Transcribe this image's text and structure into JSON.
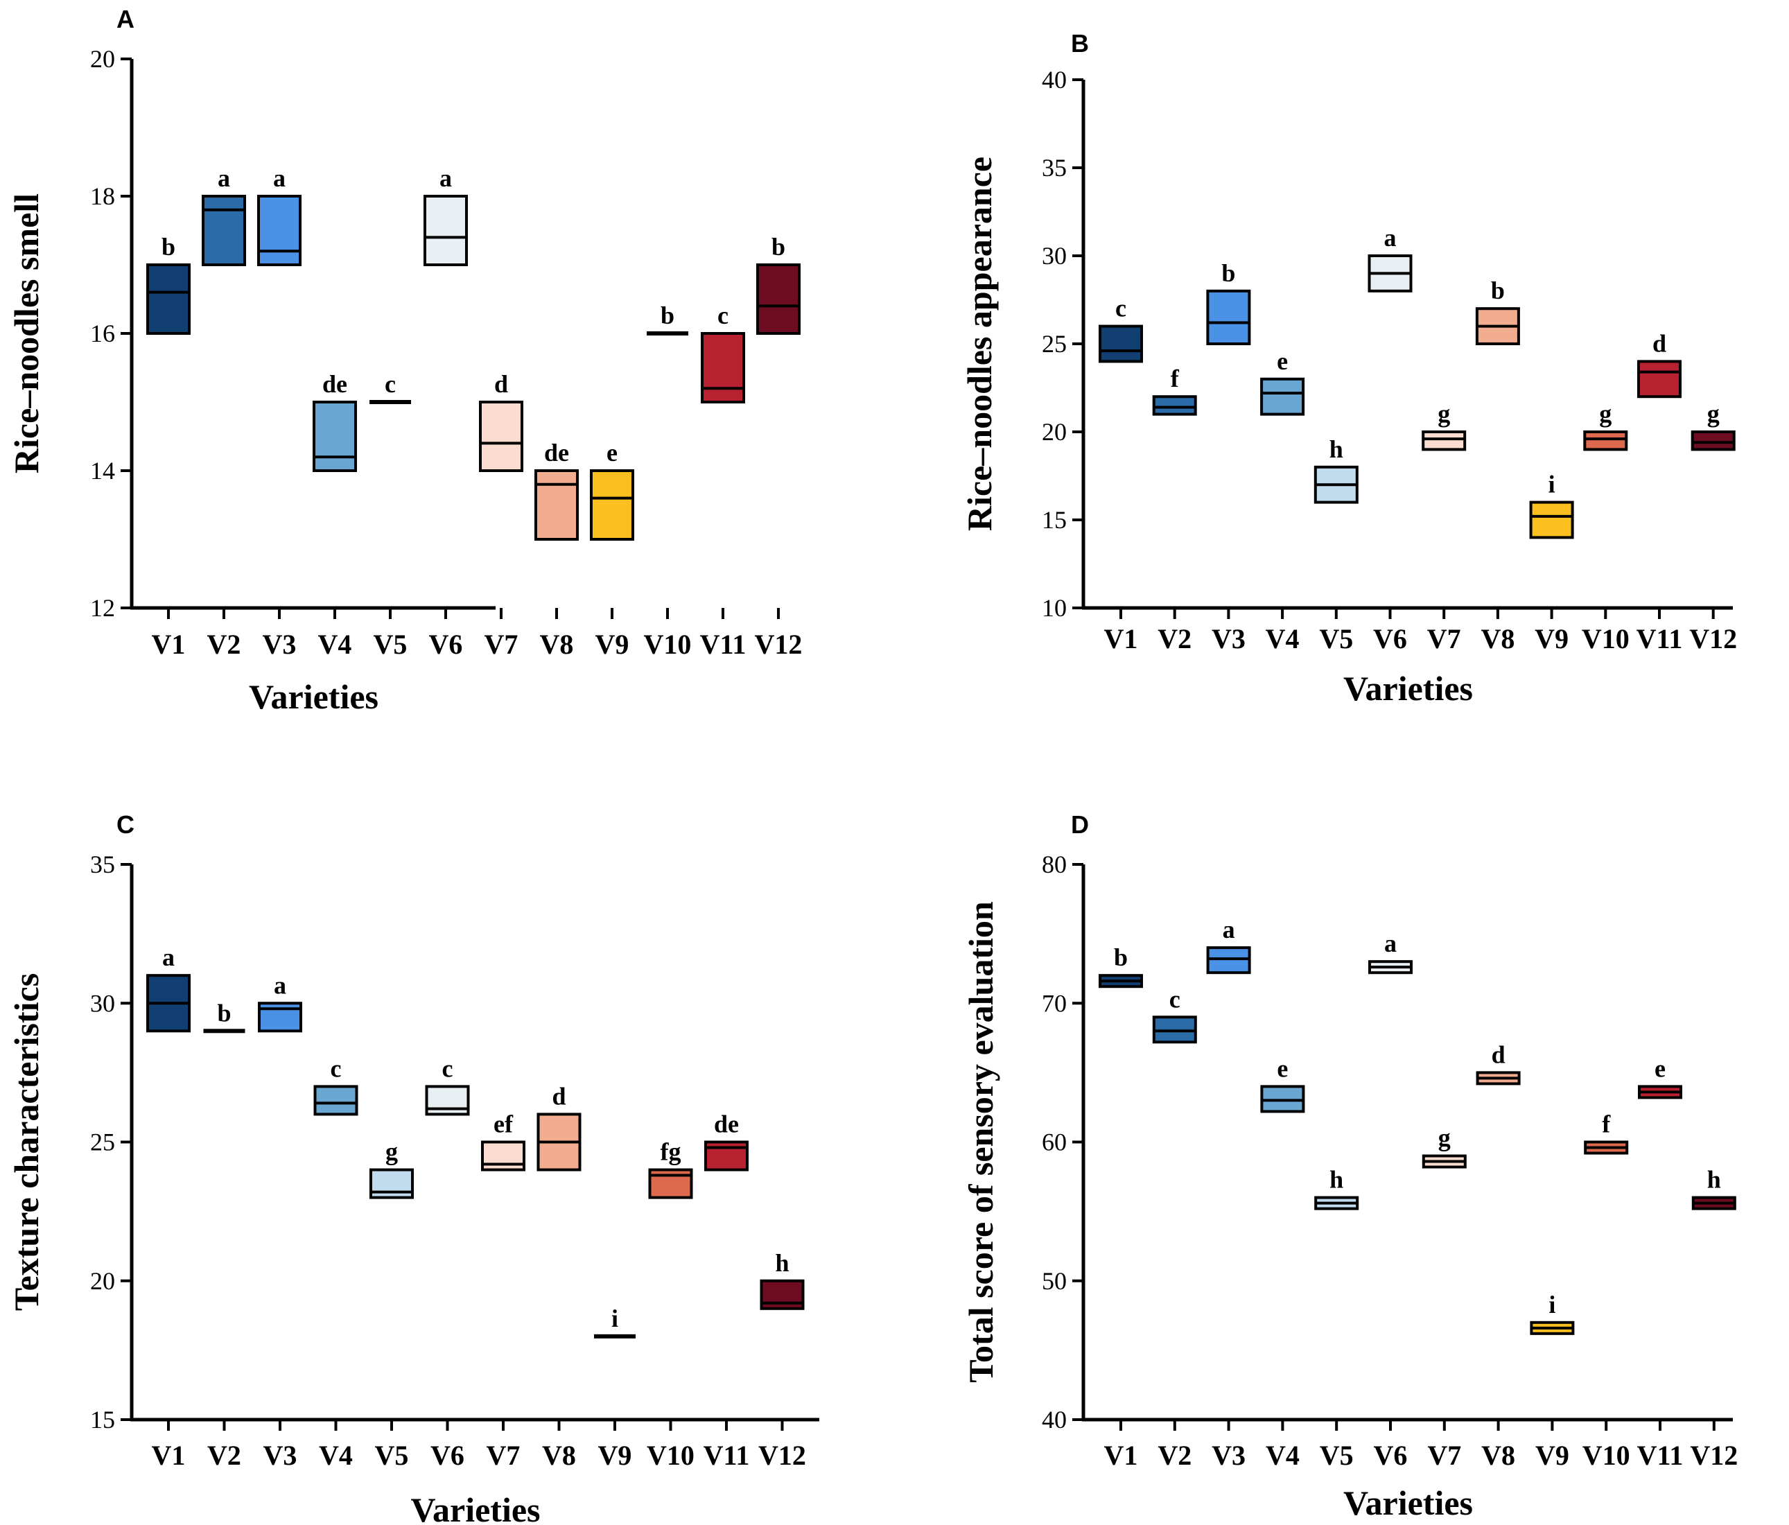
{
  "palette": [
    "#123f72",
    "#2b6ca8",
    "#4a92e6",
    "#6aa6d2",
    "#c0dcee",
    "#e8f0f4",
    "#fbdcd0",
    "#f2ad91",
    "#fbc020",
    "#dd6a4e",
    "#b8212f",
    "#6e0c22"
  ],
  "chart_data": [
    {
      "panel": "A",
      "type": "floating-bar",
      "categories": [
        "V1",
        "V2",
        "V3",
        "V4",
        "V5",
        "V6",
        "V7",
        "V8",
        "V9",
        "V10",
        "V11",
        "V12"
      ],
      "xlabel": "Varieties",
      "ylabel": "Rice–noodles smell",
      "ylim": [
        12,
        20
      ],
      "yticks": [
        12,
        14,
        16,
        18,
        20
      ],
      "ytick_labels": [
        "12",
        "14",
        "16",
        "18",
        "20"
      ],
      "min": [
        16,
        17,
        17,
        14,
        15,
        17,
        14,
        13,
        13,
        16,
        15,
        16
      ],
      "max": [
        17,
        18,
        18,
        15,
        15,
        18,
        15,
        14,
        14,
        16,
        16,
        17
      ],
      "mean": [
        16.6,
        17.8,
        17.2,
        14.2,
        15,
        17.4,
        14.4,
        13.8,
        13.6,
        16,
        15.2,
        16.4
      ],
      "letters": [
        "b",
        "a",
        "a",
        "de",
        "c",
        "a",
        "d",
        "de",
        "e",
        "b",
        "c",
        "b"
      ]
    },
    {
      "panel": "B",
      "type": "floating-bar",
      "categories": [
        "V1",
        "V2",
        "V3",
        "V4",
        "V5",
        "V6",
        "V7",
        "V8",
        "V9",
        "V10",
        "V11",
        "V12"
      ],
      "xlabel": "Varieties",
      "ylabel": "Rice–noodles appearance",
      "ylim": [
        10,
        40
      ],
      "yticks": [
        10,
        15,
        20,
        25,
        30,
        35,
        40
      ],
      "ytick_labels": [
        "10",
        "15",
        "20",
        "25",
        "30",
        "35",
        "40"
      ],
      "min": [
        24,
        21,
        25,
        21,
        16,
        28,
        19,
        25,
        14,
        19,
        22,
        19
      ],
      "max": [
        26,
        22,
        28,
        23,
        18,
        30,
        20,
        27,
        16,
        20,
        24,
        20
      ],
      "mean": [
        24.6,
        21.4,
        26.2,
        22.2,
        17,
        29,
        19.6,
        26,
        15.2,
        19.6,
        23.4,
        19.4
      ],
      "letters": [
        "c",
        "f",
        "b",
        "e",
        "h",
        "a",
        "g",
        "b",
        "i",
        "g",
        "d",
        "g"
      ]
    },
    {
      "panel": "C",
      "type": "floating-bar",
      "categories": [
        "V1",
        "V2",
        "V3",
        "V4",
        "V5",
        "V6",
        "V7",
        "V8",
        "V9",
        "V10",
        "V11",
        "V12"
      ],
      "xlabel": "Varieties",
      "ylabel": "Texture characteristics",
      "ylim": [
        15,
        35
      ],
      "yticks": [
        15,
        20,
        25,
        30,
        35
      ],
      "ytick_labels": [
        "15",
        "20",
        "25",
        "30",
        "35"
      ],
      "min": [
        29,
        29,
        29,
        26,
        23,
        26,
        24,
        24,
        18,
        23,
        24,
        19
      ],
      "max": [
        31,
        29,
        30,
        27,
        24,
        27,
        25,
        26,
        18,
        24,
        25,
        20
      ],
      "mean": [
        30,
        29,
        29.8,
        26.4,
        23.2,
        26.2,
        24.2,
        25,
        18,
        23.8,
        24.8,
        19.2
      ],
      "letters": [
        "a",
        "b",
        "a",
        "c",
        "g",
        "c",
        "ef",
        "d",
        "i",
        "fg",
        "de",
        "h"
      ]
    },
    {
      "panel": "D",
      "type": "floating-bar",
      "categories": [
        "V1",
        "V2",
        "V3",
        "V4",
        "V5",
        "V6",
        "V7",
        "V8",
        "V9",
        "V10",
        "V11",
        "V12"
      ],
      "xlabel": "Varieties",
      "ylabel": "Total score of sensory evaluation",
      "ylim": [
        40,
        80
      ],
      "yticks": [
        40,
        50,
        60,
        70,
        80
      ],
      "ytick_labels": [
        "40",
        "50",
        "60",
        "70",
        "80"
      ],
      "min": [
        71.2,
        67.2,
        72.2,
        62.2,
        55.2,
        72.2,
        58.2,
        64.2,
        46.2,
        59.2,
        63.2,
        55.2
      ],
      "max": [
        72,
        69,
        74,
        64,
        56,
        73,
        59,
        65,
        47,
        60,
        64,
        56
      ],
      "mean": [
        71.6,
        68,
        73.2,
        63,
        55.6,
        72.6,
        58.6,
        64.6,
        46.6,
        59.6,
        63.6,
        55.6
      ],
      "letters": [
        "b",
        "c",
        "a",
        "e",
        "h",
        "a",
        "g",
        "d",
        "i",
        "f",
        "e",
        "h"
      ]
    }
  ]
}
